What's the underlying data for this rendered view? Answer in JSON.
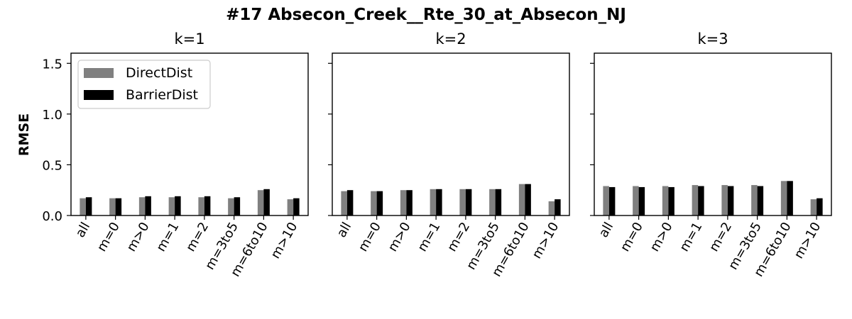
{
  "figure": {
    "title": "#17 Absecon_Creek__Rte_30_at_Absecon_NJ",
    "ylabel": "RMSE"
  },
  "legend": {
    "items": [
      {
        "label": "DirectDist",
        "color": "#808080"
      },
      {
        "label": "BarrierDist",
        "color": "#000000"
      }
    ],
    "placement": "top-left of first panel"
  },
  "colors": {
    "DirectDist": "#808080",
    "BarrierDist": "#000000"
  },
  "chart_data": [
    {
      "type": "bar",
      "title": "k=1",
      "categories": [
        "all",
        "m=0",
        "m>0",
        "m=1",
        "m=2",
        "m=3to5",
        "m=6to10",
        "m>10"
      ],
      "ylabel": "RMSE",
      "ylim": [
        0,
        1.6
      ],
      "yticks": [
        "0.0",
        "0.5",
        "1.0",
        "1.5"
      ],
      "grid": false,
      "series": [
        {
          "name": "DirectDist",
          "values": [
            0.17,
            0.17,
            0.18,
            0.18,
            0.18,
            0.17,
            0.25,
            0.16
          ]
        },
        {
          "name": "BarrierDist",
          "values": [
            0.18,
            0.17,
            0.19,
            0.19,
            0.19,
            0.18,
            0.26,
            0.17
          ]
        }
      ]
    },
    {
      "type": "bar",
      "title": "k=2",
      "categories": [
        "all",
        "m=0",
        "m>0",
        "m=1",
        "m=2",
        "m=3to5",
        "m=6to10",
        "m>10"
      ],
      "ylim": [
        0,
        1.6
      ],
      "grid": false,
      "series": [
        {
          "name": "DirectDist",
          "values": [
            0.24,
            0.24,
            0.25,
            0.26,
            0.26,
            0.26,
            0.31,
            0.14
          ]
        },
        {
          "name": "BarrierDist",
          "values": [
            0.25,
            0.24,
            0.25,
            0.26,
            0.26,
            0.26,
            0.31,
            0.16
          ]
        }
      ]
    },
    {
      "type": "bar",
      "title": "k=3",
      "categories": [
        "all",
        "m=0",
        "m>0",
        "m=1",
        "m=2",
        "m=3to5",
        "m=6to10",
        "m>10"
      ],
      "ylim": [
        0,
        1.6
      ],
      "grid": false,
      "series": [
        {
          "name": "DirectDist",
          "values": [
            0.29,
            0.29,
            0.29,
            0.3,
            0.3,
            0.3,
            0.34,
            0.16
          ]
        },
        {
          "name": "BarrierDist",
          "values": [
            0.28,
            0.28,
            0.28,
            0.29,
            0.29,
            0.29,
            0.34,
            0.17
          ]
        }
      ]
    }
  ]
}
